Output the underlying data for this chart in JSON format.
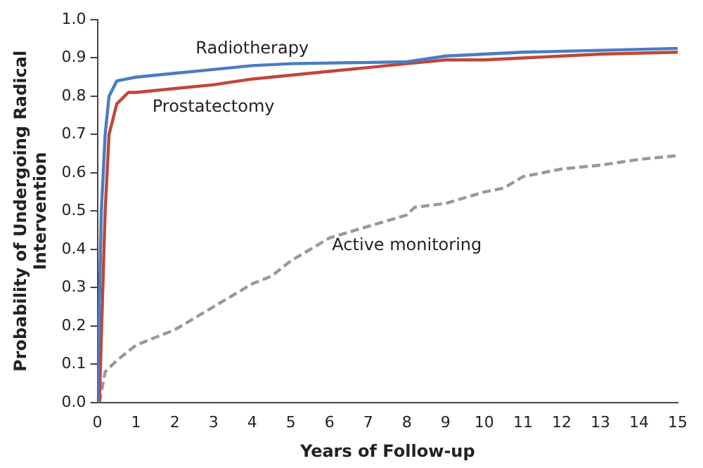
{
  "chart_data": {
    "type": "line",
    "xlabel": "Years of Follow-up",
    "ylabel": "Probability of Undergoing Radical Intervention",
    "xlim": [
      0,
      15
    ],
    "xticks": [
      0,
      1,
      2,
      3,
      4,
      5,
      6,
      7,
      8,
      9,
      10,
      11,
      12,
      13,
      14,
      15
    ],
    "ylim": [
      0,
      1
    ],
    "yticks": [
      {
        "value": 0,
        "label": "0.0"
      },
      0.1,
      0.2,
      0.3,
      0.4,
      0.5,
      0.6,
      0.7,
      0.8,
      0.9,
      {
        "value": 1,
        "label": "1.0"
      }
    ],
    "grid": false,
    "legend": false,
    "marker": "none",
    "series": [
      {
        "name": "Radiotherapy",
        "color": "#4a7cc4",
        "line_style": "solid",
        "x": [
          0,
          0.1,
          0.2,
          0.3,
          0.5,
          1,
          2,
          3,
          4,
          5,
          8,
          9,
          10,
          11,
          13,
          15
        ],
        "values": [
          0,
          0.5,
          0.7,
          0.8,
          0.84,
          0.85,
          0.86,
          0.87,
          0.88,
          0.885,
          0.89,
          0.905,
          0.91,
          0.915,
          0.92,
          0.925
        ]
      },
      {
        "name": "Prostatectomy",
        "color": "#c0463a",
        "line_style": "solid",
        "x": [
          0.05,
          0.2,
          0.3,
          0.5,
          0.8,
          1,
          2,
          3,
          4,
          5,
          6,
          7,
          8,
          9,
          10,
          11,
          12,
          13,
          15
        ],
        "values": [
          0,
          0.5,
          0.7,
          0.78,
          0.81,
          0.81,
          0.82,
          0.83,
          0.845,
          0.855,
          0.865,
          0.875,
          0.885,
          0.895,
          0.895,
          0.9,
          0.905,
          0.91,
          0.915
        ]
      },
      {
        "name": "Active monitoring",
        "color": "#999999",
        "line_style": "dashed",
        "x": [
          0.05,
          0.2,
          0.5,
          1,
          2,
          3,
          4,
          4.5,
          5,
          5.5,
          6,
          7,
          8,
          8.2,
          9,
          10,
          10.5,
          11,
          12,
          13,
          14,
          15
        ],
        "values": [
          0,
          0.08,
          0.11,
          0.15,
          0.19,
          0.25,
          0.31,
          0.33,
          0.37,
          0.4,
          0.43,
          0.46,
          0.49,
          0.51,
          0.52,
          0.55,
          0.56,
          0.59,
          0.61,
          0.62,
          0.635,
          0.645
        ]
      }
    ]
  }
}
